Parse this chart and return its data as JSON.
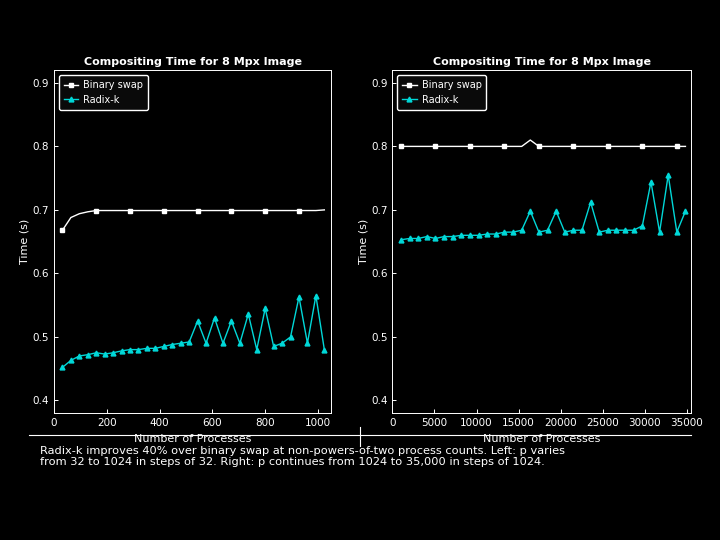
{
  "title": "Compositing Time for 8 Mpx Image",
  "xlabel": "Number of Processes",
  "ylabel": "Time (s)",
  "bg_color": "#000000",
  "plot_bg_color": "#000000",
  "text_color": "#ffffff",
  "binary_color": "#ffffff",
  "radix_color": "#00d8d8",
  "ylim": [
    0.38,
    0.92
  ],
  "yticks": [
    0.4,
    0.5,
    0.6,
    0.7,
    0.8,
    0.9
  ],
  "legend_labels": [
    "Binary swap",
    "Radix-k"
  ],
  "left_binary_x": [
    32,
    64,
    96,
    128,
    160,
    192,
    224,
    256,
    288,
    320,
    352,
    384,
    416,
    448,
    480,
    512,
    544,
    576,
    608,
    640,
    672,
    704,
    736,
    768,
    800,
    832,
    864,
    896,
    928,
    960,
    992,
    1024
  ],
  "left_binary_y": [
    0.668,
    0.688,
    0.694,
    0.697,
    0.699,
    0.699,
    0.699,
    0.699,
    0.699,
    0.699,
    0.699,
    0.699,
    0.699,
    0.699,
    0.699,
    0.699,
    0.699,
    0.699,
    0.699,
    0.699,
    0.699,
    0.699,
    0.699,
    0.699,
    0.699,
    0.699,
    0.699,
    0.699,
    0.699,
    0.699,
    0.699,
    0.7
  ],
  "left_radix_x": [
    32,
    64,
    96,
    128,
    160,
    192,
    224,
    256,
    288,
    320,
    352,
    384,
    416,
    448,
    480,
    512,
    544,
    576,
    608,
    640,
    672,
    704,
    736,
    768,
    800,
    832,
    864,
    896,
    928,
    960,
    992,
    1024
  ],
  "left_radix_y": [
    0.452,
    0.463,
    0.47,
    0.472,
    0.475,
    0.473,
    0.475,
    0.478,
    0.48,
    0.48,
    0.482,
    0.482,
    0.485,
    0.488,
    0.49,
    0.492,
    0.525,
    0.49,
    0.53,
    0.49,
    0.525,
    0.49,
    0.536,
    0.48,
    0.545,
    0.485,
    0.49,
    0.5,
    0.563,
    0.49,
    0.565,
    0.48
  ],
  "left_xlim": [
    0,
    1050
  ],
  "left_xticks": [
    0,
    200,
    400,
    600,
    800,
    1000
  ],
  "right_binary_x": [
    1024,
    2048,
    3072,
    4096,
    5120,
    6144,
    7168,
    8192,
    9216,
    10240,
    11264,
    12288,
    13312,
    14336,
    15360,
    16384,
    17408,
    18432,
    19456,
    20480,
    21504,
    22528,
    23552,
    24576,
    25600,
    26624,
    27648,
    28672,
    29696,
    30720,
    31744,
    32768,
    33792,
    34816
  ],
  "right_binary_y": [
    0.8,
    0.8,
    0.8,
    0.8,
    0.8,
    0.8,
    0.8,
    0.8,
    0.8,
    0.8,
    0.8,
    0.8,
    0.8,
    0.8,
    0.8,
    0.81,
    0.8,
    0.8,
    0.8,
    0.8,
    0.8,
    0.8,
    0.8,
    0.8,
    0.8,
    0.8,
    0.8,
    0.8,
    0.8,
    0.8,
    0.8,
    0.8,
    0.8,
    0.8
  ],
  "right_radix_x": [
    1024,
    2048,
    3072,
    4096,
    5120,
    6144,
    7168,
    8192,
    9216,
    10240,
    11264,
    12288,
    13312,
    14336,
    15360,
    16384,
    17408,
    18432,
    19456,
    20480,
    21504,
    22528,
    23552,
    24576,
    25600,
    26624,
    27648,
    28672,
    29696,
    30720,
    31744,
    32768,
    33792,
    34816
  ],
  "right_radix_y": [
    0.653,
    0.655,
    0.655,
    0.658,
    0.655,
    0.658,
    0.658,
    0.66,
    0.66,
    0.66,
    0.662,
    0.662,
    0.665,
    0.665,
    0.668,
    0.698,
    0.665,
    0.668,
    0.698,
    0.665,
    0.668,
    0.668,
    0.712,
    0.665,
    0.668,
    0.668,
    0.668,
    0.668,
    0.675,
    0.744,
    0.665,
    0.755,
    0.665,
    0.698
  ],
  "right_xlim": [
    0,
    35500
  ],
  "right_xticks": [
    0,
    5000,
    10000,
    15000,
    20000,
    25000,
    30000,
    35000
  ],
  "caption": "Radix-k improves 40% over binary swap at non-powers-of-two process counts. Left: p varies\nfrom 32 to 1024 in steps of 32. Right: p continues from 1024 to 35,000 in steps of 1024."
}
